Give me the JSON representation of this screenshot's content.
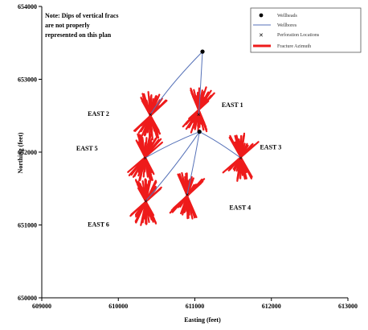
{
  "chart_data": {
    "type": "scatter",
    "xlabel": "Easting (feet)",
    "ylabel": "Northing (feet)",
    "xlim": [
      609000,
      613000
    ],
    "ylim": [
      650000,
      654000
    ],
    "xticks": [
      "609000",
      "610000",
      "611000",
      "612000",
      "613000"
    ],
    "yticks": [
      "650000",
      "651000",
      "652000",
      "653000",
      "654000"
    ],
    "note": [
      "Note: Dips of vertical fracs",
      "are not properly",
      "represented on this plan"
    ],
    "legend": {
      "position": "top-right",
      "entries": [
        "Wellheads",
        "Wellbores",
        "Perforation Locations",
        "Fracture Azimuth"
      ]
    },
    "colors": {
      "wellbore": "#5571b8",
      "fracture": "#ee1b1b",
      "wellhead": "#000000"
    },
    "wellheads": [
      {
        "x": 611100,
        "y": 653380
      },
      {
        "x": 611060,
        "y": 652280
      }
    ],
    "wells": [
      {
        "label": "EAST 1",
        "from": [
          611100,
          653380
        ],
        "path": [
          [
            611060,
            652620
          ],
          [
            611050,
            652520
          ]
        ],
        "center": [
          611050,
          652580
        ],
        "label_pos": [
          611350,
          652620
        ]
      },
      {
        "label": "EAST 2",
        "from": [
          611100,
          653380
        ],
        "path": [
          [
            610650,
            652900
          ],
          [
            610420,
            652520
          ]
        ],
        "center": [
          610420,
          652500
        ],
        "label_pos": [
          609600,
          652500
        ]
      },
      {
        "label": "EAST 3",
        "from": [
          611060,
          652280
        ],
        "path": [
          [
            611300,
            652150
          ],
          [
            611600,
            651920
          ]
        ],
        "center": [
          611600,
          651930
        ],
        "label_pos": [
          611850,
          652040
        ]
      },
      {
        "label": "EAST 4",
        "from": [
          611060,
          652280
        ],
        "path": [
          [
            611000,
            651900
          ],
          [
            610900,
            651420
          ]
        ],
        "center": [
          610900,
          651400
        ],
        "label_pos": [
          611450,
          651210
        ]
      },
      {
        "label": "EAST 5",
        "from": [
          611060,
          652280
        ],
        "path": [
          [
            610700,
            652130
          ],
          [
            610350,
            651920
          ]
        ],
        "center": [
          610350,
          651930
        ],
        "label_pos": [
          609450,
          652020
        ]
      },
      {
        "label": "EAST 6",
        "from": [
          611060,
          652280
        ],
        "path": [
          [
            610750,
            651800
          ],
          [
            610360,
            651330
          ]
        ],
        "center": [
          610360,
          651320
        ],
        "label_pos": [
          609600,
          650980
        ]
      }
    ]
  }
}
